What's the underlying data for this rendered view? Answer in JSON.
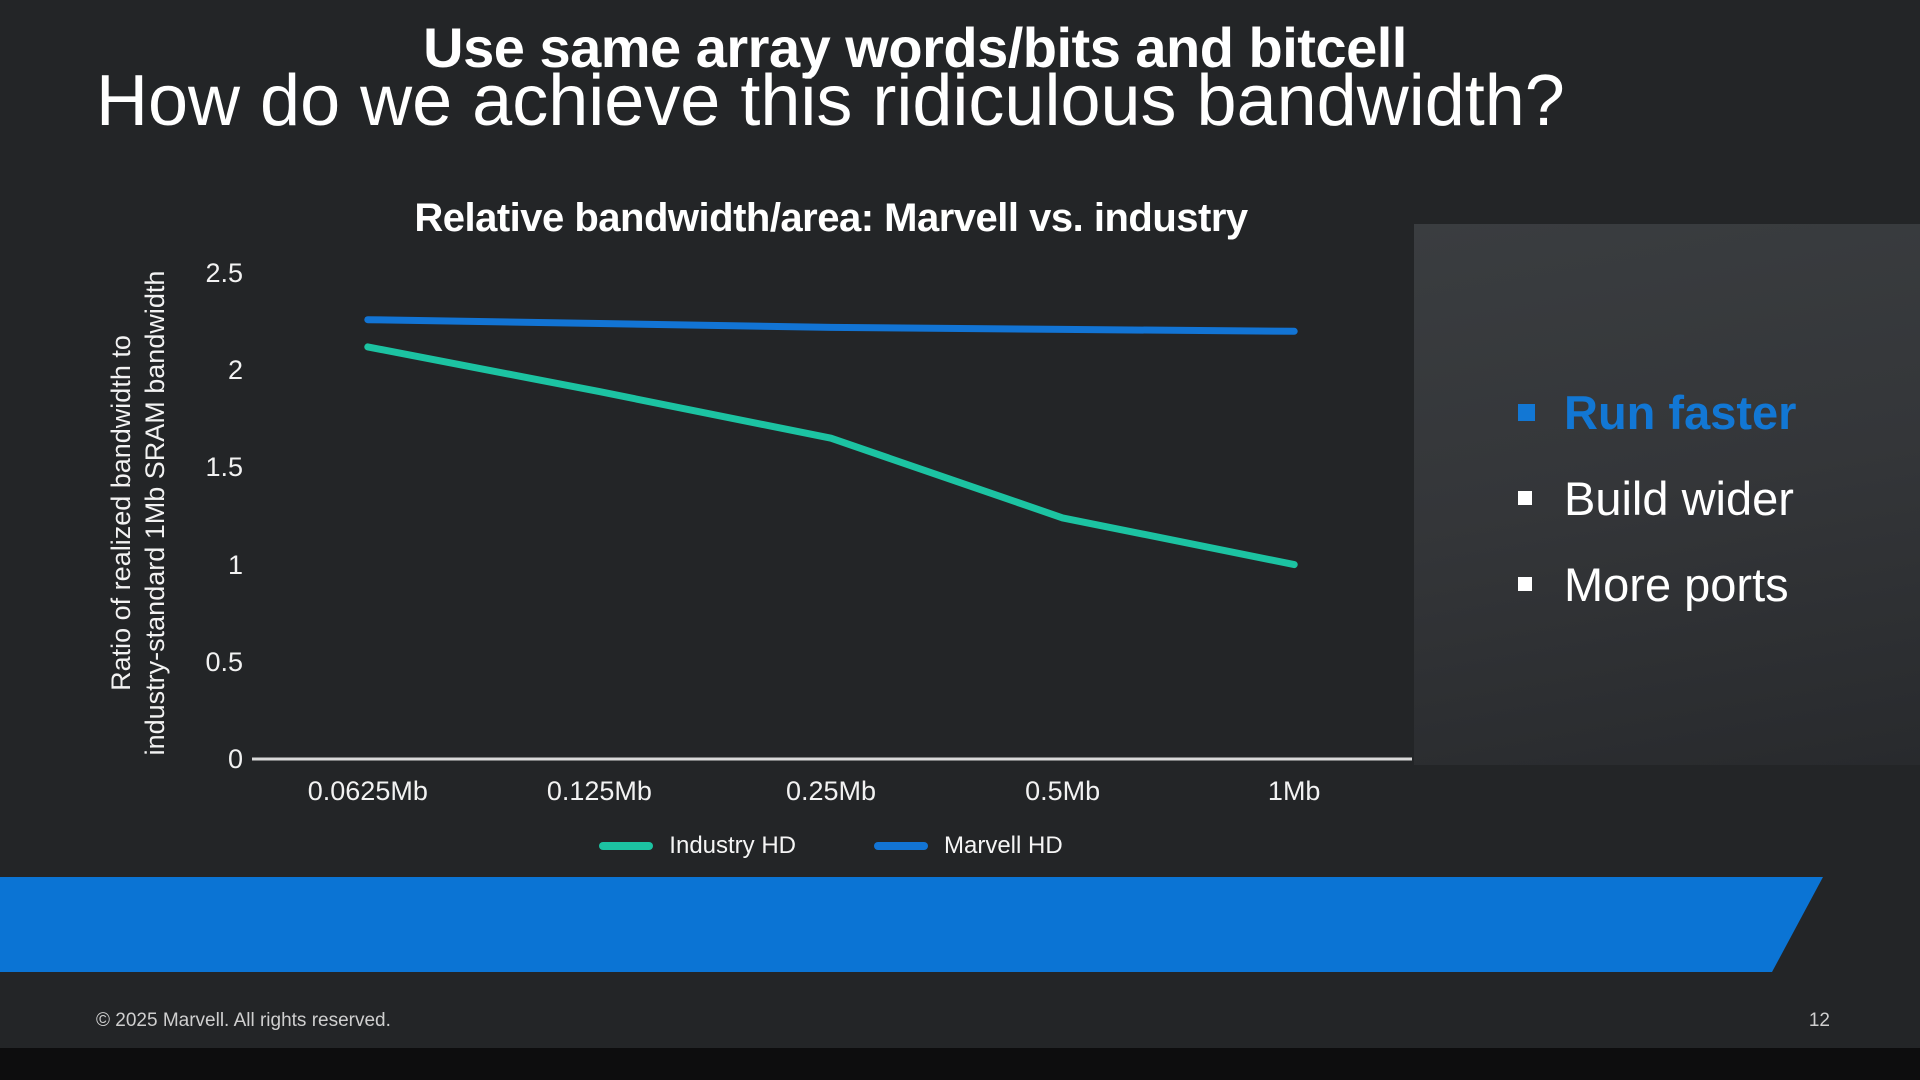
{
  "slide": {
    "title": "How do we achieve this ridiculous bandwidth?",
    "banner_text": "Use same array words/bits and bitcell",
    "footer": "© 2025 Marvell. All rights reserved.",
    "page_number": "12",
    "bullets": [
      {
        "label": "Run faster",
        "emphasis": true
      },
      {
        "label": "Build wider",
        "emphasis": false
      },
      {
        "label": "More ports",
        "emphasis": false
      }
    ],
    "colors": {
      "background": "#232527",
      "accent_blue": "#0B74D4",
      "bullet_highlight_blue": "#1277D4",
      "banner_text_color": "#ffffff",
      "axis_color": "#d9d9d9"
    }
  },
  "chart_data": {
    "type": "line",
    "title": "Relative bandwidth/area: Marvell vs. industry",
    "categories": [
      "0.0625Mb",
      "0.125Mb",
      "0.25Mb",
      "0.5Mb",
      "1Mb"
    ],
    "series": [
      {
        "name": "Industry HD",
        "color": "#1CC3A2",
        "values": [
          2.12,
          1.89,
          1.65,
          1.24,
          1.0
        ]
      },
      {
        "name": "Marvell HD",
        "color": "#1274D4",
        "values": [
          2.26,
          2.24,
          2.22,
          2.21,
          2.2
        ]
      }
    ],
    "xlabel": "",
    "ylabel": "Ratio of realized bandwidth to\nindustry-standard 1Mb SRAM bandwidth",
    "ylim": [
      0,
      2.5
    ],
    "yticks": [
      0,
      0.5,
      1,
      1.5,
      2,
      2.5
    ],
    "grid": false,
    "legend_position": "bottom"
  }
}
